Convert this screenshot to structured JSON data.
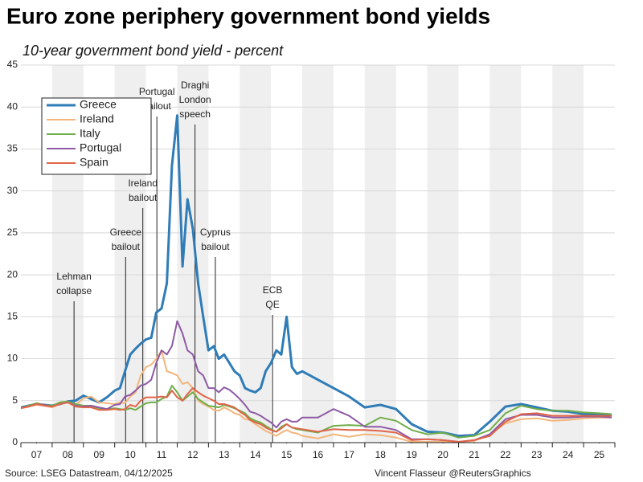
{
  "chart_data": {
    "type": "line",
    "title": "Euro zone periphery government bond yields",
    "subtitle": "10-year government bond yield - percent",
    "source": "Source: LSEG Datastream, 04/12/2025",
    "credit": "Vincent Flasseur @ReutersGraphics",
    "x": [
      2007.0,
      2007.25,
      2007.5,
      2007.75,
      2008.0,
      2008.25,
      2008.5,
      2008.75,
      2009.0,
      2009.25,
      2009.5,
      2009.75,
      2010.0,
      2010.17,
      2010.33,
      2010.5,
      2010.67,
      2010.83,
      2011.0,
      2011.17,
      2011.33,
      2011.5,
      2011.67,
      2011.83,
      2012.0,
      2012.17,
      2012.33,
      2012.5,
      2012.67,
      2012.83,
      2013.0,
      2013.17,
      2013.33,
      2013.5,
      2013.67,
      2013.83,
      2014.0,
      2014.17,
      2014.33,
      2014.5,
      2014.67,
      2014.83,
      2015.0,
      2015.17,
      2015.33,
      2015.5,
      2015.67,
      2015.83,
      2016.0,
      2016.5,
      2017.0,
      2017.5,
      2018.0,
      2018.5,
      2019.0,
      2019.5,
      2020.0,
      2020.5,
      2021.0,
      2021.5,
      2022.0,
      2022.5,
      2023.0,
      2023.5,
      2024.0,
      2024.5,
      2025.0,
      2025.5,
      2025.9
    ],
    "series": [
      {
        "name": "Greece",
        "color": "#2f7cb7",
        "values": [
          4.2,
          4.4,
          4.6,
          4.5,
          4.4,
          4.6,
          4.9,
          5.0,
          5.6,
          5.2,
          4.8,
          5.4,
          6.2,
          6.5,
          8.5,
          10.5,
          11.2,
          11.8,
          12.3,
          12.5,
          15.5,
          16.0,
          19.0,
          33.0,
          39.0,
          21.0,
          29.0,
          25.5,
          19.0,
          15.0,
          11.0,
          11.5,
          10.0,
          10.5,
          9.5,
          8.5,
          8.0,
          6.5,
          6.2,
          6.0,
          6.5,
          8.5,
          9.5,
          11.0,
          10.5,
          15.0,
          9.0,
          8.2,
          8.5,
          7.5,
          6.5,
          5.5,
          4.2,
          4.5,
          4.0,
          2.2,
          1.3,
          1.2,
          0.8,
          0.9,
          2.5,
          4.3,
          4.6,
          4.2,
          3.8,
          3.7,
          3.4,
          3.3,
          3.3
        ]
      },
      {
        "name": "Ireland",
        "color": "#f3b57a",
        "values": [
          4.1,
          4.3,
          4.5,
          4.4,
          4.2,
          4.6,
          4.8,
          4.5,
          5.3,
          5.5,
          4.8,
          4.7,
          4.6,
          4.8,
          4.7,
          5.5,
          6.0,
          8.0,
          9.0,
          9.3,
          10.0,
          11.0,
          8.5,
          8.3,
          8.0,
          7.0,
          7.2,
          6.5,
          5.0,
          4.6,
          4.3,
          3.9,
          3.8,
          4.2,
          3.9,
          3.5,
          3.3,
          2.8,
          2.7,
          2.2,
          1.8,
          1.4,
          1.1,
          0.8,
          1.2,
          1.5,
          1.2,
          1.1,
          0.8,
          0.5,
          1.0,
          0.7,
          1.0,
          0.9,
          0.6,
          0.1,
          0.1,
          0.1,
          0.1,
          0.2,
          1.0,
          2.3,
          2.8,
          2.9,
          2.6,
          2.7,
          2.9,
          3.0,
          3.0
        ]
      },
      {
        "name": "Italy",
        "color": "#6fae4a",
        "values": [
          4.2,
          4.4,
          4.7,
          4.5,
          4.4,
          4.8,
          4.9,
          4.6,
          4.4,
          4.4,
          4.1,
          4.0,
          4.1,
          4.0,
          3.9,
          4.1,
          3.9,
          4.3,
          4.7,
          4.8,
          4.8,
          5.2,
          5.5,
          6.8,
          6.0,
          5.0,
          5.5,
          6.0,
          5.2,
          4.8,
          4.4,
          4.3,
          4.2,
          4.5,
          4.3,
          4.1,
          3.8,
          3.5,
          2.9,
          2.6,
          2.4,
          2.0,
          1.6,
          1.3,
          1.9,
          2.2,
          1.8,
          1.6,
          1.5,
          1.2,
          2.0,
          2.1,
          2.0,
          3.0,
          2.6,
          1.5,
          1.0,
          1.2,
          0.6,
          0.8,
          1.5,
          3.5,
          4.4,
          4.0,
          3.8,
          3.8,
          3.6,
          3.5,
          3.4
        ]
      },
      {
        "name": "Portugal",
        "color": "#8e5aa5",
        "values": [
          4.2,
          4.3,
          4.6,
          4.5,
          4.3,
          4.6,
          4.8,
          4.4,
          4.3,
          4.4,
          4.2,
          4.0,
          4.5,
          4.6,
          5.5,
          5.7,
          6.2,
          6.8,
          7.0,
          7.5,
          9.5,
          11.0,
          10.5,
          11.5,
          14.5,
          13.0,
          11.0,
          10.5,
          8.5,
          8.0,
          6.5,
          6.5,
          6.0,
          6.6,
          6.3,
          5.8,
          5.2,
          4.5,
          3.7,
          3.5,
          3.2,
          2.8,
          2.4,
          1.8,
          2.5,
          2.8,
          2.5,
          2.5,
          3.0,
          3.0,
          4.0,
          3.2,
          1.9,
          1.9,
          1.5,
          0.4,
          0.4,
          0.3,
          0.1,
          0.3,
          1.0,
          2.8,
          3.3,
          3.3,
          3.0,
          3.0,
          3.1,
          3.1,
          3.0
        ]
      },
      {
        "name": "Spain",
        "color": "#e06548",
        "values": [
          4.1,
          4.3,
          4.6,
          4.4,
          4.3,
          4.6,
          4.8,
          4.3,
          4.2,
          4.2,
          3.9,
          3.9,
          4.0,
          3.9,
          4.0,
          4.5,
          4.3,
          5.0,
          5.4,
          5.4,
          5.4,
          5.5,
          5.4,
          6.2,
          5.4,
          5.0,
          5.8,
          6.5,
          6.0,
          5.6,
          5.3,
          5.0,
          4.6,
          4.6,
          4.4,
          4.2,
          3.7,
          3.3,
          2.7,
          2.4,
          2.2,
          1.8,
          1.5,
          1.3,
          1.7,
          2.2,
          1.8,
          1.7,
          1.6,
          1.3,
          1.6,
          1.5,
          1.5,
          1.4,
          1.2,
          0.3,
          0.4,
          0.3,
          0.1,
          0.3,
          0.8,
          2.5,
          3.4,
          3.5,
          3.2,
          3.2,
          3.2,
          3.2,
          3.2
        ]
      }
    ],
    "annotations": [
      {
        "lines": [
          "Lehman",
          "collapse"
        ],
        "x": 2008.7
      },
      {
        "lines": [
          "Greece",
          "bailout"
        ],
        "x": 2010.35
      },
      {
        "lines": [
          "Ireland",
          "bailout"
        ],
        "x": 2010.9
      },
      {
        "lines": [
          "Portugal",
          "bailout"
        ],
        "x": 2011.35
      },
      {
        "lines": [
          "Draghi",
          "London",
          "speech"
        ],
        "x": 2012.57
      },
      {
        "lines": [
          "Cyprus",
          "bailout"
        ],
        "x": 2013.22
      },
      {
        "lines": [
          "ECB",
          "QE"
        ],
        "x": 2015.05
      }
    ],
    "xlim": [
      2007,
      2026
    ],
    "xticks": [
      {
        "value": 2007.5,
        "label": "07"
      },
      {
        "value": 2008.5,
        "label": "08"
      },
      {
        "value": 2009.5,
        "label": "09"
      },
      {
        "value": 2010.5,
        "label": "10"
      },
      {
        "value": 2011.5,
        "label": "11"
      },
      {
        "value": 2012.5,
        "label": "12"
      },
      {
        "value": 2013.5,
        "label": "13"
      },
      {
        "value": 2014.5,
        "label": "14"
      },
      {
        "value": 2015.5,
        "label": "15"
      },
      {
        "value": 2016.5,
        "label": "16"
      },
      {
        "value": 2017.5,
        "label": "17"
      },
      {
        "value": 2018.5,
        "label": "18"
      },
      {
        "value": 2019.5,
        "label": "19"
      },
      {
        "value": 2020.5,
        "label": "20"
      },
      {
        "value": 2021.5,
        "label": "21"
      },
      {
        "value": 2022.5,
        "label": "22"
      },
      {
        "value": 2023.5,
        "label": "23"
      },
      {
        "value": 2024.5,
        "label": "24"
      },
      {
        "value": 2025.5,
        "label": "25"
      }
    ],
    "ylim": [
      0,
      45
    ],
    "yticks": [
      0,
      5,
      10,
      15,
      20,
      25,
      30,
      35,
      40,
      45
    ],
    "grid": true
  }
}
